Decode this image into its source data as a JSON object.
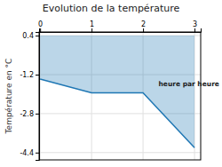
{
  "chart_data": {
    "type": "area",
    "title": "Evolution de la température",
    "y_label": "Température en °C",
    "x": [
      0,
      1,
      2,
      3
    ],
    "values": [
      -1.38,
      -1.95,
      -1.95,
      -4.2
    ],
    "fill_top": 0.4,
    "xlim": [
      -0.02,
      3.12
    ],
    "ylim": [
      -4.7,
      0.55
    ],
    "xticks": [
      0,
      1,
      2,
      3
    ],
    "yticks": [
      0.4,
      -1.2,
      -2.8,
      -4.4
    ],
    "grid": true,
    "annotations": [
      {
        "text": "heure par heure",
        "x": 2.3,
        "y": -1.6
      }
    ]
  }
}
